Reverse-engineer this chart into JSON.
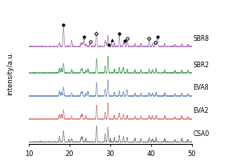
{
  "title": "",
  "xlabel": "",
  "ylabel": "intensity/a.u.",
  "xlim": [
    10,
    50
  ],
  "xticklabels": [
    "10",
    "20",
    "30",
    "40",
    "50"
  ],
  "xticks": [
    10,
    20,
    30,
    40,
    50
  ],
  "series_labels": [
    "CSA0",
    "EVA2",
    "EVA8",
    "SBR2",
    "SBR8"
  ],
  "colors": [
    "#808080",
    "#e07070",
    "#7090d0",
    "#50a860",
    "#b070c0"
  ],
  "offsets": [
    0.0,
    0.14,
    0.28,
    0.42,
    0.58
  ],
  "peak_scale": [
    0.1,
    0.1,
    0.1,
    0.1,
    0.12
  ],
  "background": "#ffffff",
  "marker_positions": {
    "filled_circle": [
      18.5,
      23.5,
      29.7,
      32.2,
      33.5,
      41.5
    ],
    "open_circle": [
      25.0,
      34.2
    ],
    "filled_triangle": [
      30.3
    ],
    "open_diamond": [
      26.5,
      39.5,
      41.0
    ]
  },
  "label_fontsize": 5.5,
  "tick_fontsize": 6,
  "ylabel_fontsize": 6,
  "seed": 42
}
